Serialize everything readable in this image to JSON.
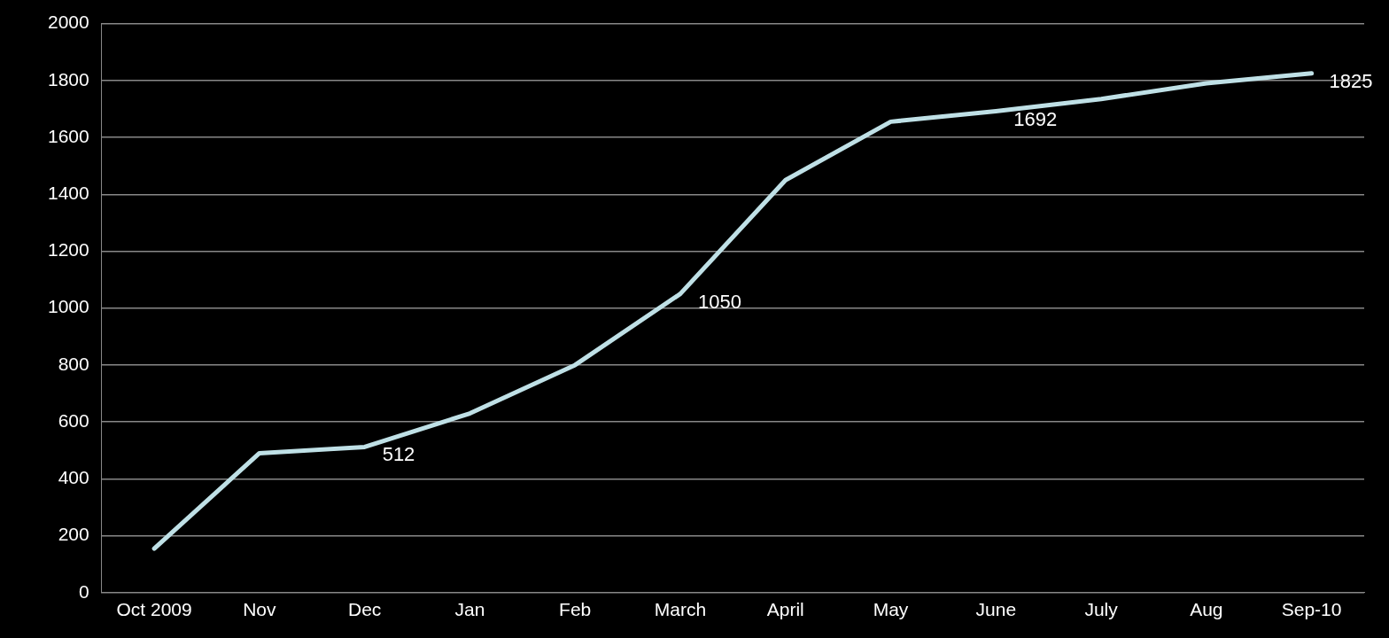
{
  "chart_data": {
    "type": "line",
    "categories": [
      "Oct 2009",
      "Nov",
      "Dec",
      "Jan",
      "Feb",
      "March",
      "April",
      "May",
      "June",
      "July",
      "Aug",
      "Sep-10"
    ],
    "series": [
      {
        "color": "#bfe0e6",
        "values": [
          155,
          490,
          512,
          630,
          800,
          1050,
          1450,
          1655,
          1692,
          1735,
          1790,
          1825
        ],
        "value_labels": [
          null,
          null,
          "512",
          null,
          null,
          "1050",
          null,
          null,
          "1692",
          null,
          null,
          "1825"
        ]
      }
    ],
    "ylim": [
      0,
      2000
    ],
    "yticks": [
      0,
      200,
      400,
      600,
      800,
      1000,
      1200,
      1400,
      1600,
      1800,
      2000
    ],
    "grid": "y",
    "legend": false,
    "marker": "none",
    "line_style": "solid"
  }
}
